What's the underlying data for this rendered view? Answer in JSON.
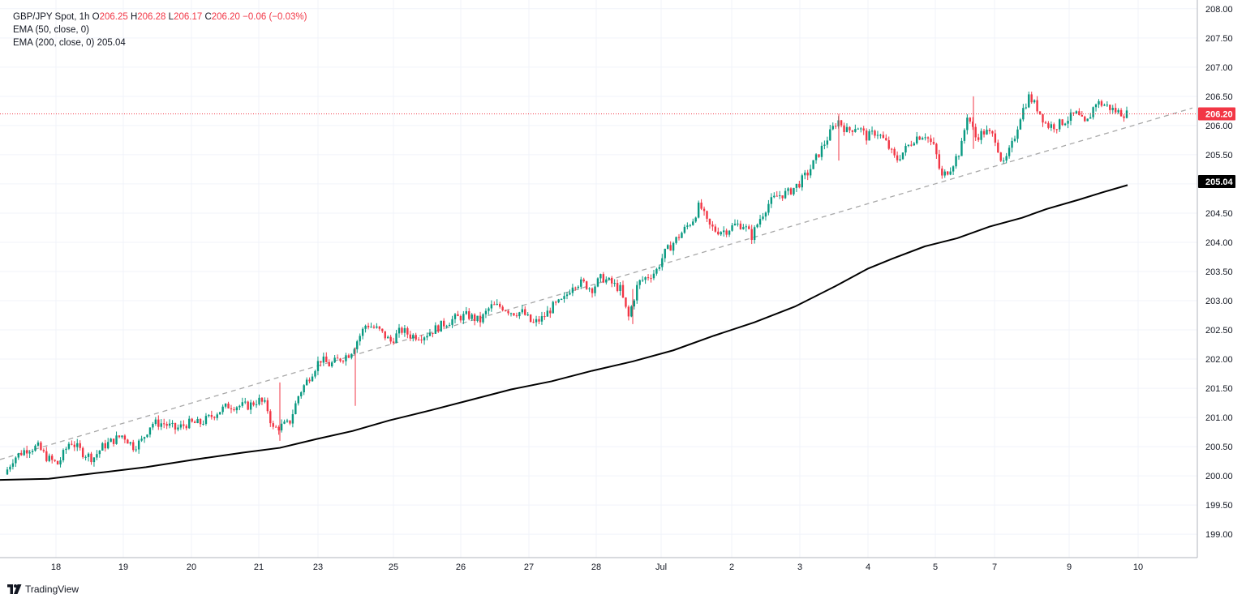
{
  "header": {
    "symbol": "GBP/JPY Spot, 1h",
    "o_key": "O",
    "o": "206.25",
    "h_key": "H",
    "h": "206.28",
    "l_key": "L",
    "l": "206.17",
    "c_key": "C",
    "c": "206.20",
    "change": "−0.06 (−0.03%)"
  },
  "indicators": [
    {
      "label": "EMA (50, close, 0)",
      "value": ""
    },
    {
      "label": "EMA (200, close, 0)",
      "value": "205.04"
    }
  ],
  "brand": "TradingView",
  "colors": {
    "up": "#089981",
    "down": "#f23645",
    "ema200": "#000000",
    "trend": "#a8a8a8",
    "grid": "#f0f3fa",
    "last_price": "#f23645"
  },
  "chart_data": {
    "type": "candlestick",
    "title": "GBP/JPY Spot, 1h",
    "x_ticks": [
      "18",
      "19",
      "20",
      "21",
      "23",
      "25",
      "26",
      "27",
      "28",
      "Jul",
      "2",
      "3",
      "4",
      "5",
      "7",
      "9",
      "10"
    ],
    "y_ticks": [
      "208.00",
      "207.50",
      "207.00",
      "206.50",
      "206.00",
      "205.50",
      "205.00",
      "204.50",
      "204.00",
      "203.50",
      "203.00",
      "202.50",
      "202.00",
      "201.50",
      "201.00",
      "200.50",
      "200.00",
      "199.50",
      "199.00"
    ],
    "ylim": [
      198.6,
      208.15
    ],
    "grid": true,
    "price_path": [
      [
        0,
        199.45
      ],
      [
        8,
        200.0
      ],
      [
        20,
        200.3
      ],
      [
        35,
        200.45
      ],
      [
        50,
        200.5
      ],
      [
        62,
        200.3
      ],
      [
        75,
        200.2
      ],
      [
        90,
        200.6
      ],
      [
        105,
        200.4
      ],
      [
        118,
        200.3
      ],
      [
        130,
        200.5
      ],
      [
        142,
        200.6
      ],
      [
        155,
        200.7
      ],
      [
        168,
        200.5
      ],
      [
        178,
        200.6
      ],
      [
        190,
        200.9
      ],
      [
        205,
        200.9
      ],
      [
        220,
        200.8
      ],
      [
        235,
        200.9
      ],
      [
        250,
        200.9
      ],
      [
        262,
        201.0
      ],
      [
        272,
        201.1
      ],
      [
        285,
        201.2
      ],
      [
        298,
        201.2
      ],
      [
        310,
        201.2
      ],
      [
        322,
        201.3
      ],
      [
        332,
        201.2
      ],
      [
        340,
        200.8
      ],
      [
        350,
        200.85
      ],
      [
        360,
        200.9
      ],
      [
        372,
        201.4
      ],
      [
        385,
        201.7
      ],
      [
        398,
        202.0
      ],
      [
        410,
        201.9
      ],
      [
        422,
        202.0
      ],
      [
        435,
        202.1
      ],
      [
        447,
        202.4
      ],
      [
        455,
        202.6
      ],
      [
        470,
        202.5
      ],
      [
        485,
        202.3
      ],
      [
        498,
        202.5
      ],
      [
        510,
        202.4
      ],
      [
        525,
        202.4
      ],
      [
        538,
        202.5
      ],
      [
        550,
        202.6
      ],
      [
        565,
        202.7
      ],
      [
        580,
        202.75
      ],
      [
        595,
        202.65
      ],
      [
        608,
        202.9
      ],
      [
        622,
        202.9
      ],
      [
        635,
        202.8
      ],
      [
        648,
        202.8
      ],
      [
        660,
        202.6
      ],
      [
        672,
        202.7
      ],
      [
        685,
        202.9
      ],
      [
        698,
        203.0
      ],
      [
        710,
        203.3
      ],
      [
        722,
        203.3
      ],
      [
        733,
        203.2
      ],
      [
        745,
        203.4
      ],
      [
        757,
        203.3
      ],
      [
        768,
        203.2
      ],
      [
        778,
        202.7
      ],
      [
        790,
        203.3
      ],
      [
        800,
        203.4
      ],
      [
        812,
        203.5
      ],
      [
        822,
        203.8
      ],
      [
        834,
        204.0
      ],
      [
        846,
        204.2
      ],
      [
        858,
        204.4
      ],
      [
        866,
        204.65
      ],
      [
        876,
        204.3
      ],
      [
        886,
        204.2
      ],
      [
        898,
        204.2
      ],
      [
        910,
        204.3
      ],
      [
        920,
        204.3
      ],
      [
        930,
        204.1
      ],
      [
        940,
        204.4
      ],
      [
        950,
        204.65
      ],
      [
        962,
        204.8
      ],
      [
        975,
        204.85
      ],
      [
        988,
        205.0
      ],
      [
        1000,
        205.2
      ],
      [
        1012,
        205.5
      ],
      [
        1024,
        205.8
      ],
      [
        1036,
        206.1
      ],
      [
        1048,
        205.9
      ],
      [
        1060,
        206.0
      ],
      [
        1072,
        205.8
      ],
      [
        1084,
        205.9
      ],
      [
        1096,
        205.7
      ],
      [
        1108,
        205.4
      ],
      [
        1120,
        205.6
      ],
      [
        1132,
        205.8
      ],
      [
        1144,
        205.85
      ],
      [
        1156,
        205.6
      ],
      [
        1164,
        205.1
      ],
      [
        1176,
        205.3
      ],
      [
        1188,
        205.6
      ],
      [
        1196,
        206.2
      ],
      [
        1206,
        205.8
      ],
      [
        1218,
        205.9
      ],
      [
        1230,
        205.8
      ],
      [
        1240,
        205.3
      ],
      [
        1252,
        205.7
      ],
      [
        1262,
        206.2
      ],
      [
        1272,
        206.5
      ],
      [
        1282,
        206.3
      ],
      [
        1294,
        206.0
      ],
      [
        1306,
        206.0
      ],
      [
        1318,
        206.1
      ],
      [
        1330,
        206.2
      ],
      [
        1342,
        206.0
      ],
      [
        1354,
        206.4
      ],
      [
        1366,
        206.35
      ],
      [
        1378,
        206.25
      ],
      [
        1390,
        206.2
      ]
    ],
    "trendline": [
      [
        0,
        200.28
      ],
      [
        1470,
        206.3
      ]
    ],
    "ema200": [
      [
        0,
        199.93
      ],
      [
        60,
        199.95
      ],
      [
        120,
        200.05
      ],
      [
        180,
        200.15
      ],
      [
        240,
        200.28
      ],
      [
        300,
        200.4
      ],
      [
        345,
        200.48
      ],
      [
        390,
        200.63
      ],
      [
        435,
        200.77
      ],
      [
        480,
        200.95
      ],
      [
        530,
        201.12
      ],
      [
        580,
        201.3
      ],
      [
        630,
        201.48
      ],
      [
        680,
        201.62
      ],
      [
        730,
        201.8
      ],
      [
        780,
        201.96
      ],
      [
        830,
        202.15
      ],
      [
        880,
        202.4
      ],
      [
        930,
        202.63
      ],
      [
        980,
        202.9
      ],
      [
        1030,
        203.25
      ],
      [
        1070,
        203.55
      ],
      [
        1100,
        203.72
      ],
      [
        1140,
        203.93
      ],
      [
        1180,
        204.07
      ],
      [
        1220,
        204.27
      ],
      [
        1260,
        204.42
      ],
      [
        1290,
        204.57
      ],
      [
        1330,
        204.73
      ],
      [
        1360,
        204.86
      ],
      [
        1390,
        204.98
      ]
    ],
    "last_price": "206.20",
    "ema200_value": "205.04"
  }
}
